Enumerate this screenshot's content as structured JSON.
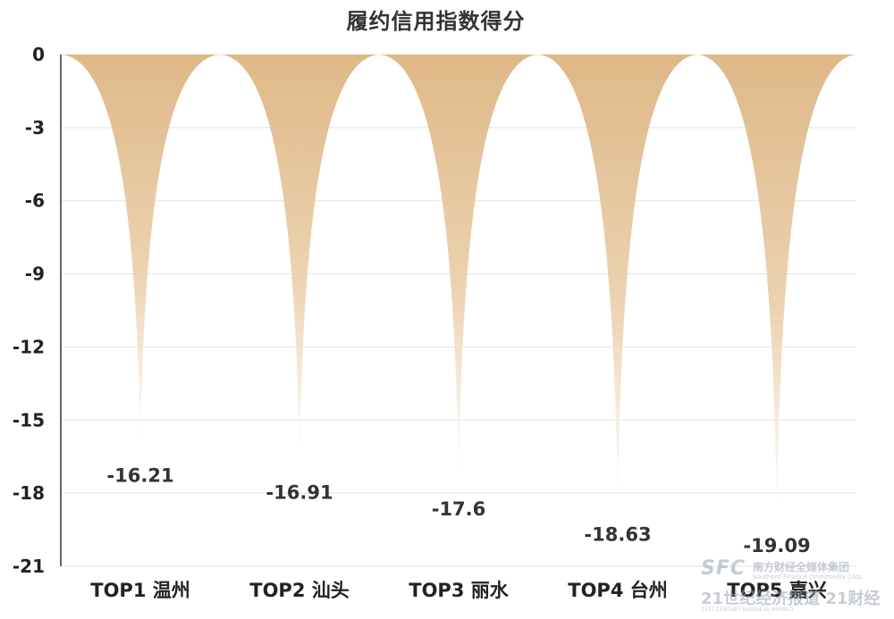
{
  "chart_data": {
    "type": "bar",
    "title": "履约信用指数得分",
    "categories": [
      "TOP1 温州",
      "TOP2 汕头",
      "TOP3 丽水",
      "TOP4 台州",
      "TOP5 嘉兴"
    ],
    "values": [
      -16.21,
      -16.91,
      -17.6,
      -18.63,
      -19.09
    ],
    "value_labels": [
      "-16.21",
      "-16.91",
      "-17.6",
      "-18.63",
      "-19.09"
    ],
    "ylim": [
      -21,
      0
    ],
    "yticks": [
      0,
      -3,
      -6,
      -9,
      -12,
      -15,
      -18,
      -21
    ],
    "ytick_labels": [
      "0",
      "-3",
      "-6",
      "-9",
      "-12",
      "-15",
      "-18",
      "-21"
    ],
    "xlabel": "",
    "ylabel": "",
    "grid": true,
    "legend": "none",
    "bar_style": "inverted-spike",
    "colors": {
      "fill_top": "#dfb887",
      "fill_bottom": "#ffffff",
      "grid": "#dde3ec",
      "axis": "#333333"
    }
  },
  "watermark": {
    "logo": "SFC",
    "cn": "南方财经全媒体集团",
    "en": "Southern Finance Omnimedia Corp.",
    "line2": "21世纪经济报道 21财经",
    "line3": "21ST CENTURY BUSINESS HERALD"
  }
}
